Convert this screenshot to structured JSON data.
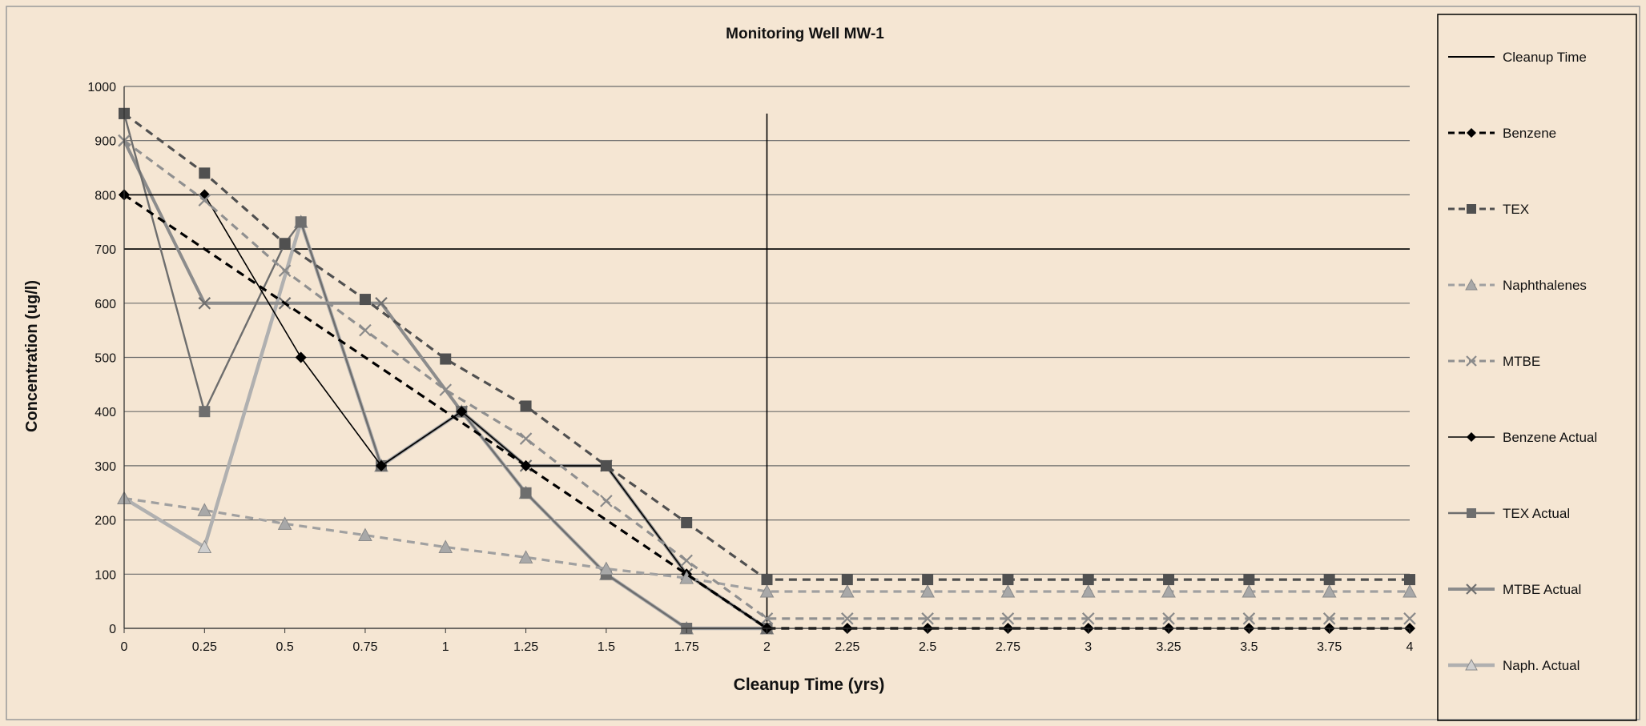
{
  "chart_data": {
    "type": "line",
    "title": "Monitoring Well MW-1",
    "xlabel": "Cleanup Time (yrs)",
    "ylabel": "Concentration (ug/l)",
    "xlim": [
      0,
      4
    ],
    "ylim": [
      0,
      1000
    ],
    "x_ticks": [
      "0",
      "0.25",
      "0.5",
      "0.75",
      "1",
      "1.25",
      "1.5",
      "1.75",
      "2",
      "2.25",
      "2.5",
      "2.75",
      "3",
      "3.25",
      "3.5",
      "3.75",
      "4"
    ],
    "y_ticks": [
      "0",
      "100",
      "200",
      "300",
      "400",
      "500",
      "600",
      "700",
      "800",
      "900",
      "1000"
    ],
    "grid": "horizontal",
    "legend_position": "right",
    "reference_lines": [
      {
        "type": "horizontal",
        "y": 700
      },
      {
        "type": "vertical",
        "x": 2,
        "y_top": 950
      }
    ],
    "series": [
      {
        "name": "Cleanup Time",
        "style": "solid",
        "marker": "none",
        "color": "#000000",
        "x": [],
        "y": []
      },
      {
        "name": "Benzene",
        "style": "dashed",
        "marker": "diamond",
        "color": "#000000",
        "x": [
          0,
          2,
          2.25,
          2.5,
          2.75,
          3,
          3.25,
          3.5,
          3.75,
          4
        ],
        "y": [
          800,
          0,
          0,
          0,
          0,
          0,
          0,
          0,
          0,
          0
        ]
      },
      {
        "name": "TEX",
        "style": "dashed",
        "marker": "square",
        "color": "#505050",
        "x": [
          0,
          0.25,
          0.5,
          0.75,
          1,
          1.25,
          1.5,
          1.75,
          2,
          2.25,
          2.5,
          2.75,
          3,
          3.25,
          3.5,
          3.75,
          4
        ],
        "y": [
          950,
          840,
          710,
          607,
          497,
          410,
          300,
          195,
          90,
          90,
          90,
          90,
          90,
          90,
          90,
          90,
          90
        ]
      },
      {
        "name": "Naphthalenes",
        "style": "dashed",
        "marker": "triangle",
        "color": "#a0a0a0",
        "x": [
          0,
          0.25,
          0.5,
          0.75,
          1,
          1.25,
          1.5,
          1.75,
          2,
          2.25,
          2.5,
          2.75,
          3,
          3.25,
          3.5,
          3.75,
          4
        ],
        "y": [
          240,
          218,
          193,
          172,
          150,
          131,
          110,
          93,
          68,
          68,
          68,
          68,
          68,
          68,
          68,
          68,
          68
        ]
      },
      {
        "name": "MTBE",
        "style": "dashed",
        "marker": "x",
        "color": "#909090",
        "x": [
          0,
          0.25,
          0.5,
          0.75,
          1,
          1.25,
          1.5,
          1.75,
          2,
          2.25,
          2.5,
          2.75,
          3,
          3.25,
          3.5,
          3.75,
          4
        ],
        "y": [
          900,
          790,
          660,
          550,
          440,
          350,
          235,
          125,
          18,
          18,
          18,
          18,
          18,
          18,
          18,
          18,
          18
        ]
      },
      {
        "name": "Benzene Actual",
        "style": "solid",
        "marker": "diamond",
        "color": "#000000",
        "x": [
          0,
          0.25,
          0.55,
          0.8,
          1.05,
          1.25,
          1.5,
          1.75,
          2
        ],
        "y": [
          800,
          800,
          500,
          300,
          400,
          300,
          300,
          100,
          0
        ]
      },
      {
        "name": "TEX Actual",
        "style": "solid",
        "marker": "square",
        "color": "#6e6e6e",
        "x": [
          0,
          0.25,
          0.5,
          0.55,
          0.8,
          1.05,
          1.25,
          1.5,
          1.75,
          2
        ],
        "y": [
          950,
          400,
          710,
          750,
          300,
          400,
          250,
          100,
          0,
          0
        ]
      },
      {
        "name": "MTBE Actual",
        "style": "solid",
        "marker": "x",
        "color": "#8c8c8c",
        "x": [
          0,
          0.25,
          0.5,
          0.8,
          1.05,
          1.25,
          1.5,
          1.75,
          2
        ],
        "y": [
          900,
          600,
          600,
          600,
          400,
          300,
          300,
          100,
          0
        ]
      },
      {
        "name": "Naph. Actual",
        "style": "solid",
        "marker": "triangle",
        "color": "#b0b0b0",
        "x": [
          0,
          0.25,
          0.55,
          0.8,
          1.05,
          1.25,
          1.5,
          1.75,
          2
        ],
        "y": [
          240,
          150,
          750,
          300,
          400,
          250,
          100,
          0,
          0
        ]
      }
    ]
  }
}
